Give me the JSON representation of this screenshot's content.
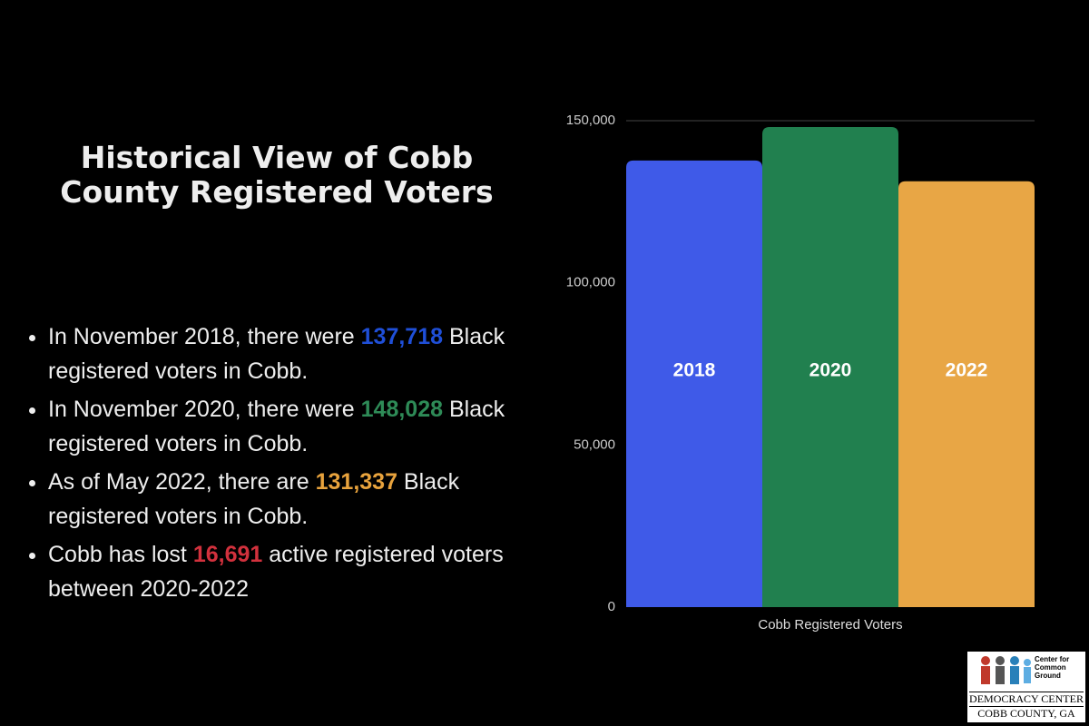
{
  "title": "Historical View of Cobb County Registered Voters",
  "bullets": [
    {
      "before": "In November 2018, there were ",
      "number": "137,718",
      "after": " Black registered voters in Cobb.",
      "color": "#1f4fd8"
    },
    {
      "before": "In November 2020, there were ",
      "number": "148,028",
      "after": " Black registered voters in Cobb.",
      "color": "#2e8b57"
    },
    {
      "before": "As of May 2022, there are  ",
      "number": "131,337",
      "after": " Black registered voters in Cobb.",
      "color": "#e8a33d"
    },
    {
      "before": "Cobb has lost ",
      "number": "16,691",
      "after": " active registered voters between 2020-2022",
      "color": "#d2313d"
    }
  ],
  "chart_data": {
    "type": "bar",
    "categories": [
      "2018",
      "2020",
      "2022"
    ],
    "values": [
      137718,
      148028,
      131337
    ],
    "colors": [
      "#3f5ae8",
      "#21804f",
      "#e8a645"
    ],
    "xlabel": "Cobb Registered Voters",
    "ylim": [
      0,
      150000
    ],
    "yticks": [
      0,
      {
        "value": 50000,
        "label": "50,000"
      },
      {
        "value": 100000,
        "label": "100,000"
      },
      {
        "value": 150000,
        "label": "150,000"
      }
    ]
  },
  "logo": {
    "line1": "Center for Common Ground",
    "line2": "DEMOCRACY CENTER",
    "line3": "COBB COUNTY, GA"
  }
}
